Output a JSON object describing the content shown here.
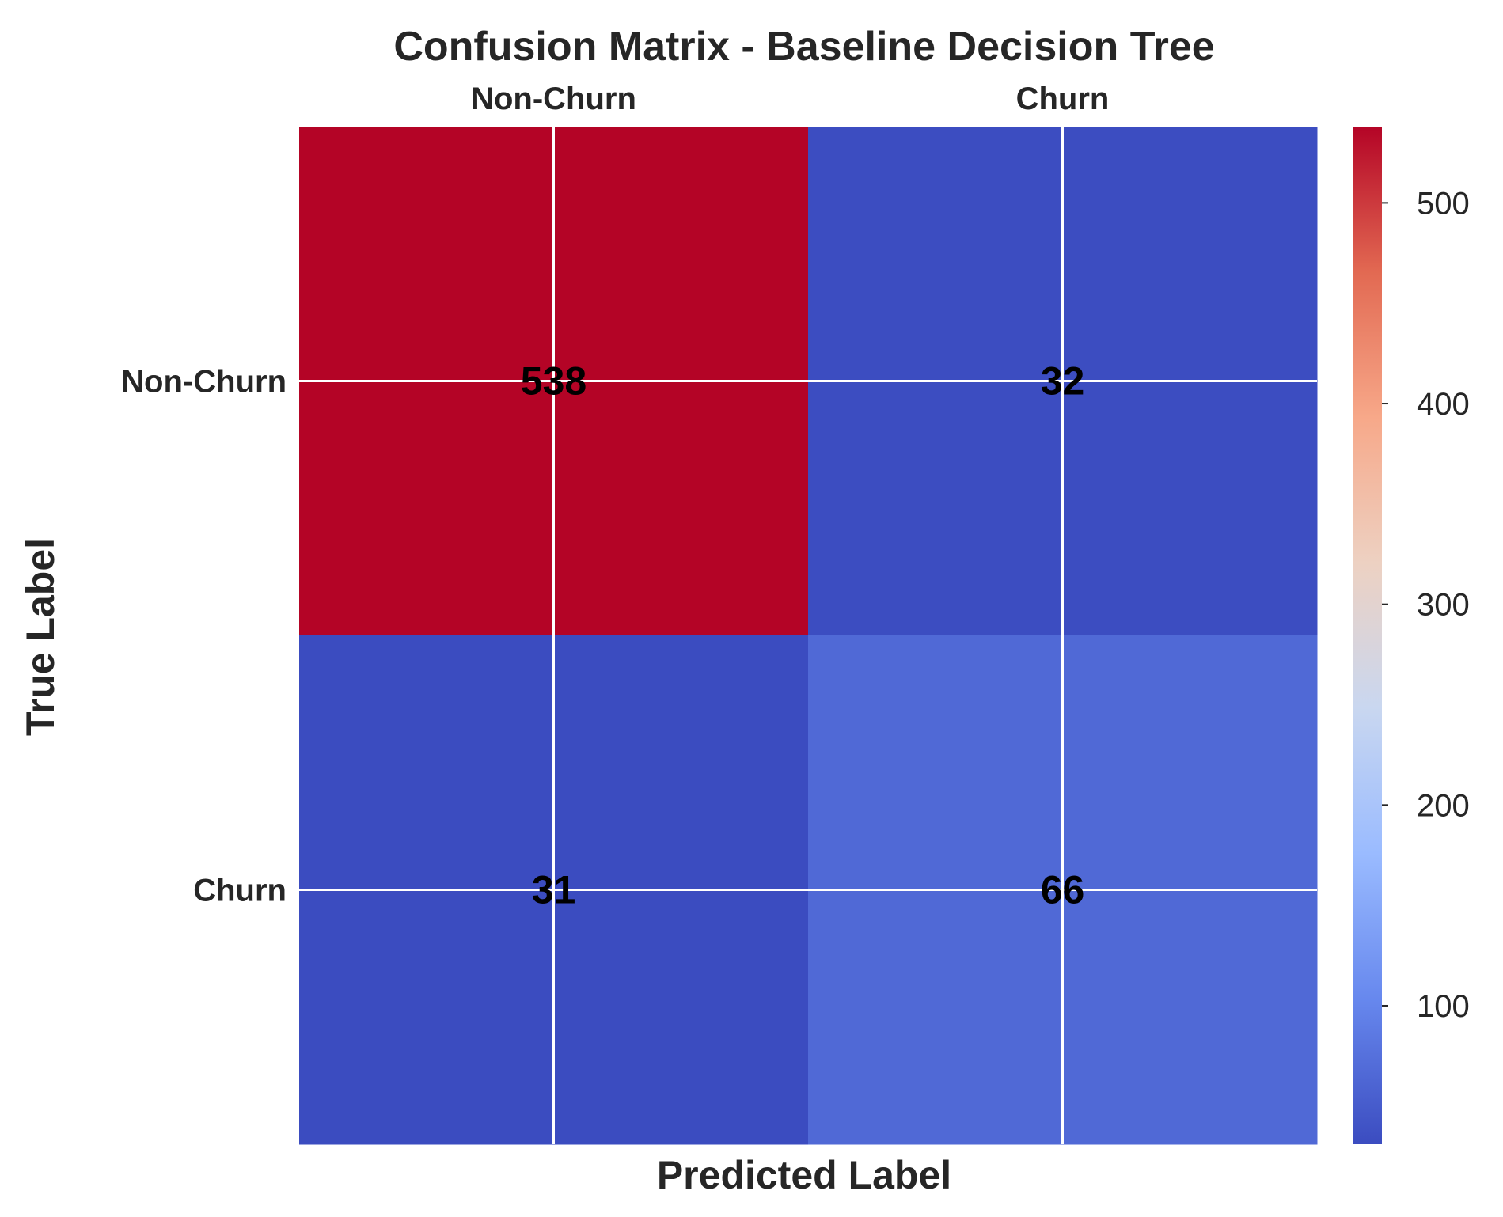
{
  "chart_data": {
    "type": "heatmap",
    "title": "Confusion Matrix - Baseline Decision Tree",
    "xlabel": "Predicted Label",
    "ylabel": "True Label",
    "x_categories": [
      "Non-Churn",
      "Churn"
    ],
    "y_categories": [
      "Non-Churn",
      "Churn"
    ],
    "x_tick_position": "top",
    "values": [
      [
        538,
        32
      ],
      [
        31,
        66
      ]
    ],
    "colormap": "coolwarm",
    "colorbar": {
      "min": 31,
      "max": 538,
      "ticks": [
        100,
        200,
        300,
        400,
        500
      ]
    },
    "grid": true
  },
  "colors": {
    "colormap_stops": [
      "#3b4cc0",
      "#6788ee",
      "#9abbff",
      "#c9d7f0",
      "#edd1c2",
      "#f7a889",
      "#e26952",
      "#b40426"
    ],
    "grid_line": "#ffffff",
    "text": "#262626",
    "cell_text": "#000000"
  }
}
